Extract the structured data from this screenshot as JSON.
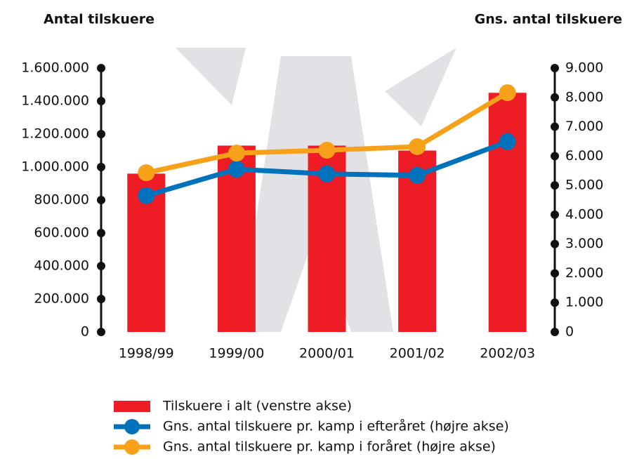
{
  "chart_data": {
    "type": "bar_line",
    "ylabel": "Antal tilskuere",
    "y2label": "Gns. antal tilskuere",
    "categories": [
      "1998/99",
      "1999/00",
      "2000/01",
      "2001/02",
      "2002/03"
    ],
    "series": [
      {
        "name": "Tilskuere i alt (venstre akse)",
        "type": "bar",
        "color": "#ee1c25",
        "values": [
          960000,
          1130000,
          1130000,
          1100000,
          1450000
        ]
      },
      {
        "name": "Gns. antal tilskuere pr. kamp i efteråret (højre akse)",
        "type": "line",
        "axis": "y2",
        "color": "#0072bc",
        "values": [
          4650,
          5550,
          5390,
          5340,
          6490
        ]
      },
      {
        "name": "Gns. antal tilskuere pr. kamp i foråret (højre akse)",
        "type": "line",
        "axis": "y2",
        "color": "#f7a11a",
        "values": [
          5430,
          6100,
          6200,
          6320,
          8160
        ]
      }
    ],
    "ylim": [
      0,
      1600000
    ],
    "yticks": [
      0,
      {
        "value": 200000,
        "label": "200.000"
      },
      {
        "value": 400000,
        "label": "400.000"
      },
      {
        "value": 600000,
        "label": "600.000"
      },
      {
        "value": 800000,
        "label": "800.000"
      },
      {
        "value": 1000000,
        "label": "1.000.000"
      },
      {
        "value": 1200000,
        "label": "1.200.000"
      },
      {
        "value": 1400000,
        "label": "1.400.000"
      },
      {
        "value": 1600000,
        "label": "1.600.000"
      }
    ],
    "y2lim": [
      0,
      9000
    ],
    "y2ticks": [
      0,
      {
        "value": 1000,
        "label": "1.000"
      },
      {
        "value": 2000,
        "label": "2.000"
      },
      {
        "value": 3000,
        "label": "3.000"
      },
      {
        "value": 4000,
        "label": "4.000"
      },
      {
        "value": 5000,
        "label": "5.000"
      },
      {
        "value": 6000,
        "label": "6.000"
      },
      {
        "value": 7000,
        "label": "7.000"
      },
      {
        "value": 8000,
        "label": "8.000"
      },
      {
        "value": 9000,
        "label": "9.000"
      }
    ]
  }
}
